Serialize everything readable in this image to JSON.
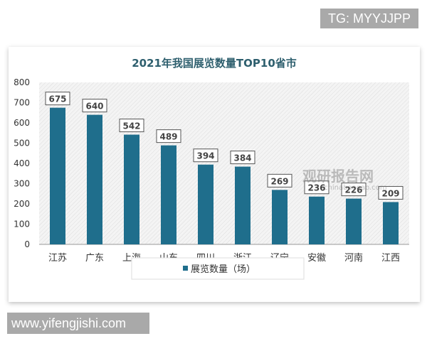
{
  "watermarks": {
    "top_right": "TG: MYYJJPP",
    "bottom_left": "www.yifengjishi.com",
    "center_cn": "观研报告网",
    "center_url": "chinabaogao.com"
  },
  "colors": {
    "bar": "#1f6e8c",
    "title": "#2e5f6e"
  },
  "chart_data": {
    "type": "bar",
    "title": "2021年我国展览数量TOP10省市",
    "categories": [
      "江苏",
      "广东",
      "上海",
      "山东",
      "四川",
      "浙江",
      "辽宁",
      "安徽",
      "河南",
      "江西"
    ],
    "series": [
      {
        "name": "展览数量（场）",
        "values": [
          675,
          640,
          542,
          489,
          394,
          384,
          269,
          236,
          226,
          209
        ]
      }
    ],
    "yticks": [
      0,
      100,
      200,
      300,
      400,
      500,
      600,
      700,
      800
    ],
    "ylim": [
      0,
      800
    ],
    "grid": false,
    "legend": "bottom",
    "data_labels": true
  }
}
